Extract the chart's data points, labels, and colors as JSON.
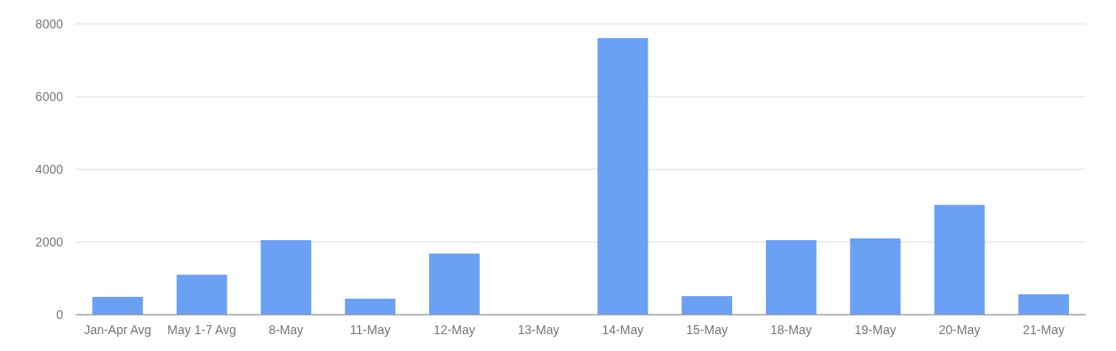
{
  "chart_data": {
    "type": "bar",
    "categories": [
      "Jan-Apr Avg",
      "May 1-7 Avg",
      "8-May",
      "11-May",
      "12-May",
      "13-May",
      "14-May",
      "15-May",
      "18-May",
      "19-May",
      "20-May",
      "21-May"
    ],
    "values": [
      490,
      1100,
      2050,
      440,
      1680,
      0,
      7610,
      510,
      2050,
      2100,
      3020,
      560
    ],
    "color": "#6aa1f4",
    "ylim": [
      0,
      8000
    ],
    "yticks": [
      0,
      2000,
      4000,
      6000,
      8000
    ],
    "grid": "y"
  }
}
